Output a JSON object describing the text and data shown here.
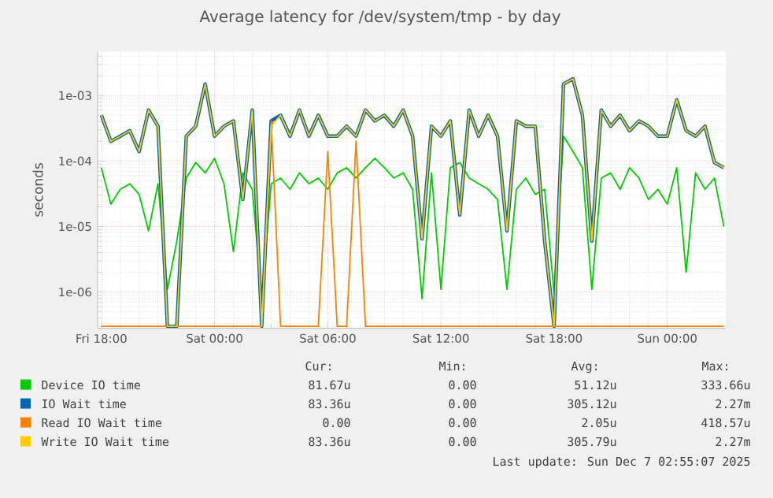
{
  "chart_data": {
    "type": "line",
    "title": "Average latency for /dev/system/tmp - by day",
    "ylabel": "seconds",
    "log": true,
    "grid": true,
    "legend": "bottom",
    "marker": "none",
    "line_style": "solid",
    "x": [
      "2025-12-05T18:00",
      "2025-12-05T18:30",
      "2025-12-05T19:00",
      "2025-12-05T19:30",
      "2025-12-05T20:00",
      "2025-12-05T20:30",
      "2025-12-05T21:00",
      "2025-12-05T21:30",
      "2025-12-05T22:00",
      "2025-12-05T22:30",
      "2025-12-05T23:00",
      "2025-12-05T23:30",
      "2025-12-06T00:00",
      "2025-12-06T00:30",
      "2025-12-06T01:00",
      "2025-12-06T01:30",
      "2025-12-06T02:00",
      "2025-12-06T02:30",
      "2025-12-06T03:00",
      "2025-12-06T03:30",
      "2025-12-06T04:00",
      "2025-12-06T04:30",
      "2025-12-06T05:00",
      "2025-12-06T05:30",
      "2025-12-06T06:00",
      "2025-12-06T06:30",
      "2025-12-06T07:00",
      "2025-12-06T07:30",
      "2025-12-06T08:00",
      "2025-12-06T08:30",
      "2025-12-06T09:00",
      "2025-12-06T09:30",
      "2025-12-06T10:00",
      "2025-12-06T10:30",
      "2025-12-06T11:00",
      "2025-12-06T11:30",
      "2025-12-06T12:00",
      "2025-12-06T12:30",
      "2025-12-06T13:00",
      "2025-12-06T13:30",
      "2025-12-06T14:00",
      "2025-12-06T14:30",
      "2025-12-06T15:00",
      "2025-12-06T15:30",
      "2025-12-06T16:00",
      "2025-12-06T16:30",
      "2025-12-06T17:00",
      "2025-12-06T17:30",
      "2025-12-06T18:00",
      "2025-12-06T18:30",
      "2025-12-06T19:00",
      "2025-12-06T19:30",
      "2025-12-06T20:00",
      "2025-12-06T20:30",
      "2025-12-06T21:00",
      "2025-12-06T21:30",
      "2025-12-06T22:00",
      "2025-12-06T22:30",
      "2025-12-06T23:00",
      "2025-12-06T23:30",
      "2025-12-07T00:00",
      "2025-12-07T00:30",
      "2025-12-07T01:00",
      "2025-12-07T01:30",
      "2025-12-07T02:00",
      "2025-12-07T02:30",
      "2025-12-07T03:00"
    ],
    "xlim": [
      "2025-12-05T17:48",
      "2025-12-07T03:06"
    ],
    "xticks": [
      {
        "value": "2025-12-05T18:00",
        "label": "Fri 18:00"
      },
      {
        "value": "2025-12-06T00:00",
        "label": "Sat 00:00"
      },
      {
        "value": "2025-12-06T06:00",
        "label": "Sat 06:00"
      },
      {
        "value": "2025-12-06T12:00",
        "label": "Sat 12:00"
      },
      {
        "value": "2025-12-06T18:00",
        "label": "Sat 18:00"
      },
      {
        "value": "2025-12-07T00:00",
        "label": "Sun 00:00"
      }
    ],
    "ylim": [
      2.8e-07,
      0.0047
    ],
    "yticks": [
      {
        "value": 1e-06,
        "label": "1e-06"
      },
      {
        "value": 1e-05,
        "label": "1e-05"
      },
      {
        "value": 0.0001,
        "label": "1e-04"
      },
      {
        "value": 0.001,
        "label": "1e-03"
      }
    ],
    "series": [
      {
        "name": "Device IO time",
        "color": "#00cc00",
        "values": [
          7.9e-05,
          2.2e-05,
          3.7e-05,
          4.5e-05,
          3.1e-05,
          8.6e-06,
          4.5e-05,
          1.1e-06,
          6e-06,
          5.5e-05,
          9.5e-05,
          6.6e-05,
          0.00011,
          4.5e-05,
          4.1e-06,
          6.6e-05,
          3.7e-05,
          7.9e-07,
          4.5e-05,
          5.5e-05,
          3.7e-05,
          6.6e-05,
          4.5e-05,
          5.5e-05,
          3.7e-05,
          6.6e-05,
          7.9e-05,
          5.5e-05,
          7.9e-05,
          0.00011,
          7.9e-05,
          5.5e-05,
          6.6e-05,
          3.7e-05,
          7.9e-07,
          6.6e-05,
          1.1e-06,
          7.9e-05,
          9.5e-05,
          5.5e-05,
          4.5e-05,
          3.7e-05,
          2.6e-05,
          1.1e-06,
          3.7e-05,
          5.5e-05,
          3.1e-05,
          3.7e-05,
          9.5e-07,
          0.00024,
          0.00014,
          7.9e-05,
          1.1e-06,
          5.5e-05,
          6.6e-05,
          3.7e-05,
          7.9e-05,
          5.5e-05,
          2.6e-05,
          3.7e-05,
          2.2e-05,
          7.9e-05,
          2e-06,
          6.6e-05,
          3.7e-05,
          5.5e-05,
          1e-05
        ]
      },
      {
        "name": "IO Wait time",
        "color": "#0066b3",
        "values": [
          0.0005,
          0.0002,
          0.00024,
          0.00029,
          0.00014,
          0.0006,
          0.00034,
          3e-07,
          3e-07,
          0.00024,
          0.00034,
          0.0015,
          0.00024,
          0.00034,
          0.00041,
          2.6e-05,
          0.0006,
          3e-07,
          0.00041,
          0.0005,
          0.00024,
          0.0006,
          0.00024,
          0.0005,
          0.00024,
          0.00024,
          0.00034,
          0.00024,
          0.0006,
          0.00041,
          0.0005,
          0.00034,
          0.0006,
          0.00024,
          6.5e-06,
          0.00034,
          0.00024,
          0.00041,
          1.5e-05,
          0.0006,
          0.00024,
          0.0005,
          0.00024,
          8.6e-06,
          0.00041,
          0.00034,
          0.00034,
          6e-06,
          3e-07,
          0.0015,
          0.0018,
          0.0005,
          6e-06,
          0.0006,
          0.00034,
          0.0005,
          0.00029,
          0.00041,
          0.00034,
          0.00024,
          0.00024,
          0.00086,
          0.00029,
          0.00024,
          0.00034,
          9.5e-05,
          7.9e-05
        ]
      },
      {
        "name": "Read IO Wait time",
        "color": "#ff8000",
        "values": [
          3e-07,
          3e-07,
          3e-07,
          3e-07,
          3e-07,
          3e-07,
          3e-07,
          3e-07,
          3e-07,
          3e-07,
          3e-07,
          3e-07,
          3e-07,
          3e-07,
          3e-07,
          3e-07,
          3e-07,
          3e-07,
          0.00041,
          3e-07,
          3e-07,
          3e-07,
          3e-07,
          3e-07,
          0.00014,
          3e-07,
          3e-07,
          0.0002,
          3e-07,
          3e-07,
          3e-07,
          3e-07,
          3e-07,
          3e-07,
          3e-07,
          3e-07,
          3e-07,
          3e-07,
          3e-07,
          3e-07,
          3e-07,
          3e-07,
          3e-07,
          3e-07,
          3e-07,
          3e-07,
          3e-07,
          3e-07,
          3e-07,
          3e-07,
          3e-07,
          3e-07,
          3e-07,
          3e-07,
          3e-07,
          3e-07,
          3e-07,
          3e-07,
          3e-07,
          3e-07,
          3e-07,
          3e-07,
          3e-07,
          3e-07,
          3e-07,
          3e-07,
          3e-07
        ]
      },
      {
        "name": "Write IO Wait time",
        "color": "#ffcc00",
        "values": [
          0.0005,
          0.0002,
          0.00024,
          0.00029,
          0.00014,
          0.0006,
          0.00034,
          3e-07,
          3e-07,
          0.00024,
          0.00034,
          0.0015,
          0.00024,
          0.00034,
          0.00041,
          2.6e-05,
          0.0006,
          3e-07,
          0.00034,
          0.0005,
          0.00024,
          0.0006,
          0.00024,
          0.0005,
          0.00024,
          0.00024,
          0.00034,
          0.00024,
          0.0006,
          0.00041,
          0.0005,
          0.00034,
          0.0006,
          0.00024,
          6.5e-06,
          0.00034,
          0.00024,
          0.00041,
          1.5e-05,
          0.0006,
          0.00024,
          0.0005,
          0.00024,
          8.6e-06,
          0.00041,
          0.00034,
          0.00034,
          6e-06,
          3e-07,
          0.0015,
          0.0018,
          0.0005,
          6e-06,
          0.0006,
          0.00034,
          0.0005,
          0.00029,
          0.00041,
          0.00034,
          0.00024,
          0.00024,
          0.00086,
          0.00029,
          0.00024,
          0.00034,
          9.5e-05,
          7.9e-05
        ]
      }
    ],
    "annotations": [
      "Cur:",
      "Min:",
      "Avg:",
      "Max:",
      "81.67u",
      "0.00",
      "51.12u",
      "333.66u",
      "83.36u",
      "0.00",
      "305.12u",
      "2.27m",
      "0.00",
      "0.00",
      "2.05u",
      "418.57u",
      "83.36u",
      "0.00",
      "305.79u",
      "2.27m",
      "Last update: Sun Dec  7 02:55:07 2025"
    ]
  }
}
